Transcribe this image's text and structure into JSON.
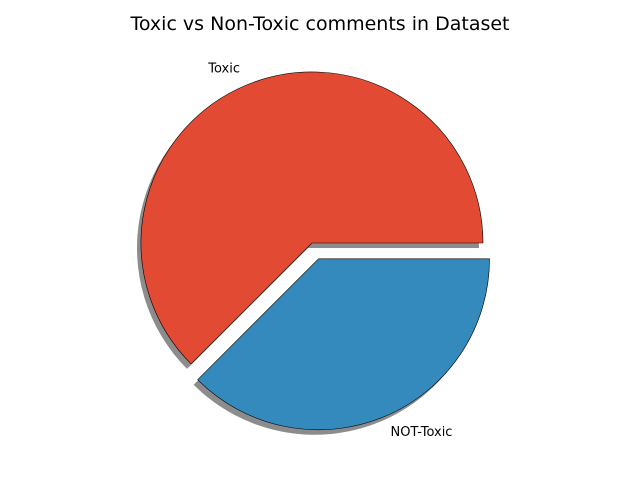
{
  "chart_data": {
    "type": "pie",
    "title": "Toxic vs Non-Toxic comments in Dataset",
    "slices": [
      {
        "label": "Toxic",
        "value": 62.5,
        "color": "#e24a33",
        "explode": 0
      },
      {
        "label": "NOT-Toxic",
        "value": 37.5,
        "color": "#348abd",
        "explode": 0.1
      }
    ],
    "shadow": true,
    "start_angle": 0,
    "direction": "counterclockwise"
  }
}
